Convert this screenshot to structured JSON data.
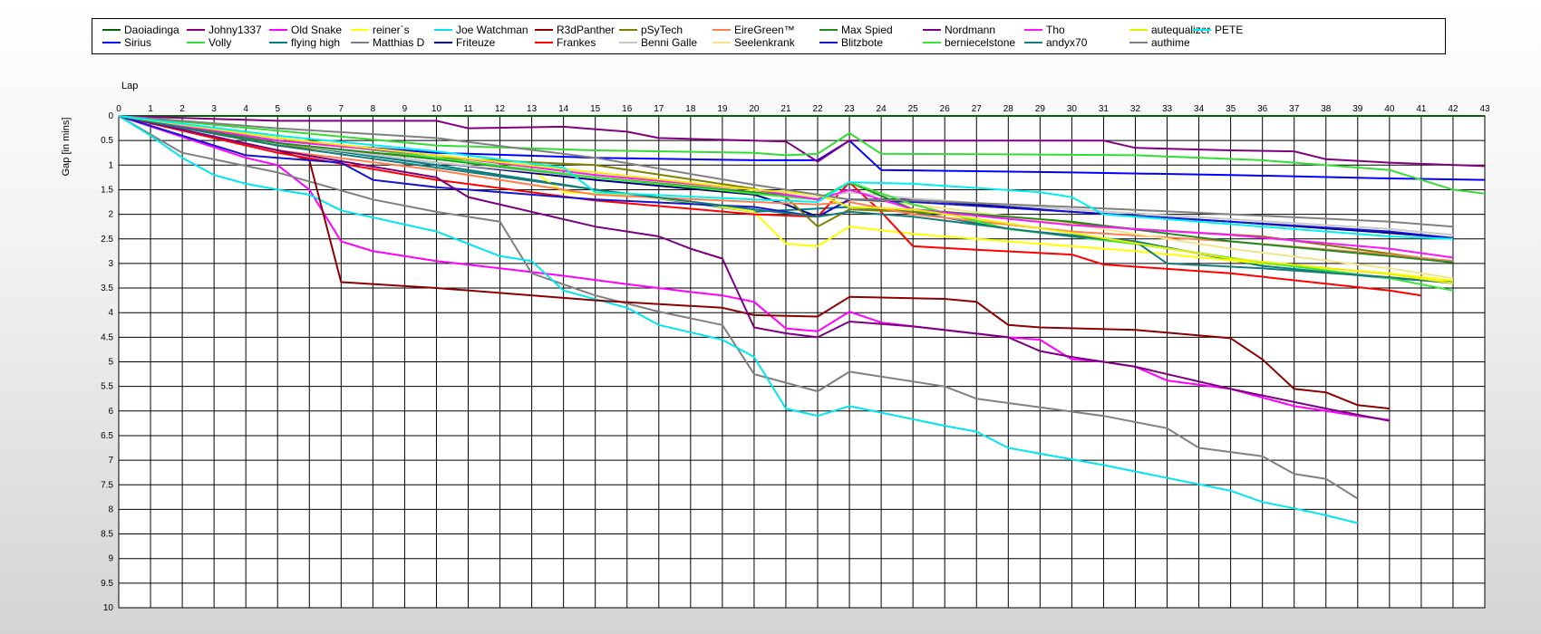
{
  "chart_data": {
    "type": "line",
    "xlabel": "Lap",
    "ylabel": "Gap [in mins]",
    "xlim": [
      0,
      43
    ],
    "ylim": [
      0,
      10
    ],
    "y_inverted": true,
    "grid": true,
    "legend_position": "top",
    "x_ticks": [
      0,
      1,
      2,
      3,
      4,
      5,
      6,
      7,
      8,
      9,
      10,
      11,
      12,
      13,
      14,
      15,
      16,
      17,
      18,
      19,
      20,
      21,
      22,
      23,
      24,
      25,
      26,
      27,
      28,
      29,
      30,
      31,
      32,
      33,
      34,
      35,
      36,
      37,
      38,
      39,
      40,
      41,
      42,
      43
    ],
    "y_ticks": [
      "0",
      "0.5",
      "1",
      "1.5",
      "2",
      "2.5",
      "3",
      "3.5",
      "4",
      "4.5",
      "5",
      "5.5",
      "6",
      "6.5",
      "7",
      "7.5",
      "8",
      "8.5",
      "9",
      "9.5",
      "10"
    ],
    "series": [
      {
        "name": "Daoiadinga",
        "color": "#006400",
        "x": [
          0,
          43
        ],
        "y": [
          0,
          0
        ]
      },
      {
        "name": "Sirius",
        "color": "#0000ff",
        "x": [
          0,
          5,
          10,
          15,
          20,
          22,
          23,
          24,
          30,
          35,
          40,
          43
        ],
        "y": [
          0,
          0.5,
          0.75,
          0.85,
          0.9,
          0.9,
          0.5,
          1.1,
          1.15,
          1.2,
          1.27,
          1.3
        ]
      },
      {
        "name": "Johny1337",
        "color": "#800080",
        "x": [
          0,
          5,
          10,
          11,
          14,
          16,
          17,
          20,
          21,
          22,
          23,
          24,
          31,
          32,
          35,
          37,
          38,
          40,
          43
        ],
        "y": [
          0,
          0.1,
          0.1,
          0.25,
          0.22,
          0.32,
          0.45,
          0.5,
          0.52,
          0.93,
          0.5,
          0.5,
          0.5,
          0.65,
          0.7,
          0.72,
          0.88,
          0.95,
          1.02
        ]
      },
      {
        "name": "Volly",
        "color": "#33dd33",
        "x": [
          0,
          5,
          10,
          15,
          20,
          21,
          22,
          23,
          24,
          28,
          32,
          36,
          40,
          42,
          43
        ],
        "y": [
          0,
          0.3,
          0.6,
          0.7,
          0.75,
          0.8,
          0.77,
          0.35,
          0.77,
          0.78,
          0.8,
          0.9,
          1.1,
          1.5,
          1.58
        ]
      },
      {
        "name": "Old Snake",
        "color": "#ff00ff",
        "x": [
          0,
          4,
          5,
          6,
          7,
          8,
          10,
          12,
          14,
          16,
          18,
          19,
          20,
          21,
          22,
          23,
          24,
          28,
          29,
          30,
          31,
          32,
          33,
          35,
          37,
          38,
          39,
          40
        ],
        "y": [
          0,
          0.85,
          1.0,
          1.5,
          2.55,
          2.75,
          2.95,
          3.1,
          3.25,
          3.42,
          3.58,
          3.65,
          3.78,
          4.32,
          4.38,
          3.98,
          4.2,
          4.5,
          4.55,
          4.95,
          5.0,
          5.1,
          5.38,
          5.55,
          5.9,
          6.0,
          6.1,
          6.18
        ]
      },
      {
        "name": "flying high",
        "color": "#008080",
        "x": [
          0,
          5,
          10,
          15,
          20,
          23,
          25,
          28,
          32,
          36,
          40,
          42
        ],
        "y": [
          0,
          0.55,
          1.0,
          1.5,
          1.95,
          1.85,
          1.95,
          2.3,
          2.55,
          3.05,
          3.3,
          3.38
        ]
      },
      {
        "name": "reiner`s",
        "color": "#ffff00",
        "x": [
          0,
          5,
          10,
          13,
          14,
          16,
          18,
          20,
          21,
          22,
          23,
          25,
          28,
          32,
          36,
          40,
          42
        ],
        "y": [
          0,
          0.45,
          0.85,
          1.1,
          1.55,
          1.6,
          1.75,
          1.95,
          2.6,
          2.65,
          2.25,
          2.4,
          2.55,
          2.75,
          3.0,
          3.2,
          3.35
        ]
      },
      {
        "name": "Matthias D",
        "color": "#808080",
        "x": [
          0,
          2,
          5,
          8,
          10,
          12,
          13,
          15,
          17,
          19,
          20,
          22,
          23,
          26,
          27,
          31,
          33,
          34,
          36,
          37,
          38,
          39
        ],
        "y": [
          0,
          0.75,
          1.15,
          1.7,
          1.95,
          2.15,
          3.2,
          3.65,
          3.98,
          4.25,
          5.25,
          5.6,
          5.2,
          5.5,
          5.75,
          6.1,
          6.35,
          6.75,
          6.92,
          7.28,
          7.38,
          7.78
        ]
      },
      {
        "name": "Joe Watchman",
        "color": "#00e5ee",
        "x": [
          0,
          1,
          2,
          3,
          4,
          5,
          6,
          7,
          10,
          12,
          13,
          14,
          16,
          17,
          19,
          20,
          21,
          22,
          23,
          26,
          27,
          28,
          31,
          35,
          36,
          37,
          38,
          39
        ],
        "y": [
          0,
          0.4,
          0.85,
          1.2,
          1.38,
          1.5,
          1.6,
          1.92,
          2.35,
          2.85,
          2.95,
          3.55,
          3.9,
          4.25,
          4.55,
          4.9,
          5.95,
          6.1,
          5.9,
          6.3,
          6.42,
          6.75,
          7.1,
          7.62,
          7.85,
          7.98,
          8.12,
          8.28
        ]
      },
      {
        "name": "Friteuze",
        "color": "#000080",
        "x": [
          0,
          5,
          10,
          15,
          20,
          21,
          22,
          23,
          25,
          30,
          35,
          40,
          42
        ],
        "y": [
          0,
          0.55,
          0.95,
          1.3,
          1.6,
          1.8,
          2.05,
          1.7,
          1.7,
          1.95,
          2.15,
          2.38,
          2.48
        ]
      },
      {
        "name": "R3dPanther",
        "color": "#8b0000",
        "x": [
          0,
          5,
          6,
          7,
          10,
          15,
          19,
          20,
          22,
          23,
          26,
          27,
          28,
          29,
          32,
          35,
          36,
          37,
          38,
          39,
          40
        ],
        "y": [
          0,
          0.7,
          0.9,
          3.38,
          3.5,
          3.75,
          3.9,
          4.05,
          4.08,
          3.68,
          3.72,
          3.78,
          4.25,
          4.3,
          4.35,
          4.52,
          4.95,
          5.55,
          5.62,
          5.88,
          5.95
        ]
      },
      {
        "name": "Frankes",
        "color": "#ff0000",
        "x": [
          0,
          5,
          10,
          15,
          20,
          22,
          23,
          24,
          25,
          27,
          30,
          31,
          35,
          40,
          41
        ],
        "y": [
          0,
          0.75,
          1.3,
          1.72,
          2.0,
          2.05,
          1.35,
          1.95,
          2.65,
          2.72,
          2.82,
          3.02,
          3.2,
          3.55,
          3.65
        ]
      },
      {
        "name": "pSyTech",
        "color": "#808000",
        "x": [
          0,
          5,
          10,
          15,
          20,
          21,
          22,
          23,
          25,
          28,
          32,
          36,
          40,
          42
        ],
        "y": [
          0,
          0.6,
          0.85,
          1.0,
          1.48,
          1.65,
          2.25,
          1.9,
          1.95,
          2.05,
          2.3,
          2.45,
          2.8,
          2.98
        ]
      },
      {
        "name": "Benni Galle",
        "color": "#c8c8c8",
        "x": [
          0,
          5,
          10,
          15,
          20,
          22,
          23,
          25,
          30,
          35,
          40,
          42
        ],
        "y": [
          0,
          0.55,
          0.95,
          1.25,
          1.55,
          1.65,
          1.55,
          1.68,
          1.9,
          2.1,
          2.3,
          2.42
        ]
      },
      {
        "name": "EireGreen™",
        "color": "#ff7f50",
        "x": [
          0,
          5,
          10,
          15,
          20,
          22,
          23,
          25,
          30,
          35,
          40,
          42
        ],
        "y": [
          0,
          0.7,
          1.1,
          1.6,
          1.75,
          1.8,
          1.75,
          2.0,
          2.35,
          2.55,
          2.82,
          2.95
        ]
      },
      {
        "name": "Seelenkrank",
        "color": "#f0e68c",
        "x": [
          0,
          5,
          10,
          15,
          20,
          22,
          23,
          25,
          30,
          35,
          40,
          42
        ],
        "y": [
          0,
          0.5,
          0.8,
          1.2,
          1.55,
          1.65,
          1.7,
          1.8,
          2.2,
          2.7,
          3.1,
          3.3
        ]
      },
      {
        "name": "Max Spied",
        "color": "#228b22",
        "x": [
          0,
          5,
          10,
          15,
          20,
          22,
          23,
          25,
          30,
          35,
          40,
          42
        ],
        "y": [
          0,
          0.55,
          0.88,
          1.25,
          1.55,
          1.7,
          1.35,
          1.9,
          2.15,
          2.55,
          2.85,
          2.98
        ]
      },
      {
        "name": "Blitzbote",
        "color": "#1414d2",
        "x": [
          0,
          4,
          5,
          7,
          8,
          10,
          15,
          20,
          22,
          23,
          25,
          30,
          35,
          40,
          42
        ],
        "y": [
          0,
          0.8,
          0.85,
          0.95,
          1.3,
          1.45,
          1.7,
          1.85,
          2.05,
          1.7,
          1.75,
          1.95,
          2.15,
          2.35,
          2.48
        ]
      },
      {
        "name": "Nordmann",
        "color": "#7b0080",
        "x": [
          0,
          5,
          10,
          11,
          15,
          17,
          18,
          19,
          20,
          21,
          22,
          23,
          25,
          28,
          29,
          30,
          32,
          35,
          38,
          40
        ],
        "y": [
          0,
          0.7,
          1.25,
          1.65,
          2.25,
          2.45,
          2.7,
          2.9,
          4.3,
          4.42,
          4.5,
          4.18,
          4.28,
          4.5,
          4.78,
          4.9,
          5.1,
          5.55,
          5.95,
          6.2
        ]
      },
      {
        "name": "berniecelstone",
        "color": "#32e632",
        "x": [
          0,
          5,
          10,
          15,
          20,
          22,
          23,
          25,
          28,
          32,
          36,
          40,
          42
        ],
        "y": [
          0,
          0.45,
          0.85,
          1.25,
          1.58,
          1.7,
          1.35,
          1.8,
          2.3,
          2.6,
          2.98,
          3.3,
          3.55
        ]
      },
      {
        "name": "Tho",
        "color": "#ff14ff",
        "x": [
          0,
          5,
          10,
          15,
          20,
          22,
          23,
          25,
          30,
          35,
          40,
          42
        ],
        "y": [
          0,
          0.5,
          0.8,
          1.2,
          1.5,
          1.7,
          1.5,
          1.9,
          2.22,
          2.42,
          2.7,
          2.88
        ]
      },
      {
        "name": "andyx70",
        "color": "#1a7a7a",
        "x": [
          0,
          5,
          10,
          15,
          20,
          22,
          23,
          25,
          30,
          32,
          33,
          36,
          40,
          42
        ],
        "y": [
          0,
          0.6,
          1.05,
          1.5,
          1.9,
          2.05,
          1.95,
          2.05,
          2.45,
          2.55,
          3.0,
          3.1,
          3.28,
          3.4
        ]
      },
      {
        "name": "autequalizer",
        "color": "#eeee00",
        "x": [
          0,
          5,
          10,
          15,
          20,
          22,
          23,
          25,
          30,
          35,
          40,
          42
        ],
        "y": [
          0,
          0.45,
          0.8,
          1.15,
          1.5,
          1.6,
          1.85,
          1.9,
          2.38,
          2.9,
          3.22,
          3.4
        ]
      },
      {
        "name": "authime",
        "color": "#808080",
        "x": [
          0,
          5,
          10,
          15,
          20,
          22,
          23,
          25,
          30,
          35,
          40,
          42
        ],
        "y": [
          0,
          0.25,
          0.45,
          0.85,
          1.4,
          1.6,
          1.7,
          1.72,
          1.85,
          2.0,
          2.15,
          2.25
        ]
      },
      {
        "name": "PETE",
        "color": "#00f0f0",
        "x": [
          0,
          5,
          10,
          14,
          15,
          20,
          22,
          23,
          25,
          29,
          30,
          31,
          32,
          35,
          40,
          42
        ],
        "y": [
          0,
          0.4,
          0.72,
          1.05,
          1.55,
          1.7,
          1.75,
          1.35,
          1.38,
          1.55,
          1.65,
          2.0,
          2.05,
          2.2,
          2.45,
          2.5
        ]
      }
    ]
  }
}
